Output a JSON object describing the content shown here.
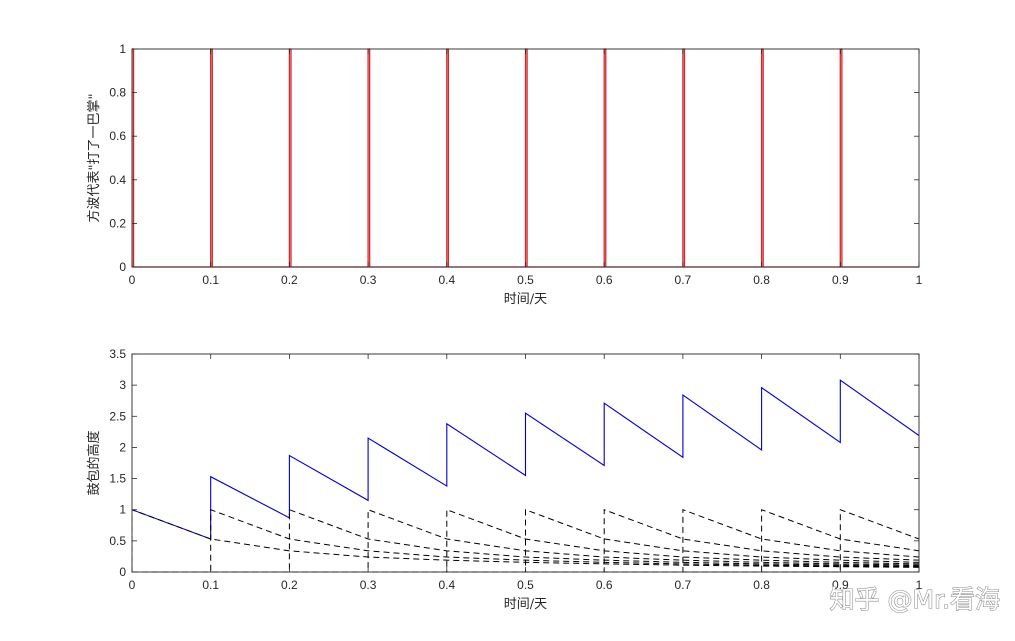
{
  "chart_data": [
    {
      "type": "line",
      "title": "",
      "xlabel": "时间/天",
      "ylabel": "方波代表\"打了一巴掌\"",
      "xlim": [
        0,
        1
      ],
      "ylim": [
        0,
        1
      ],
      "xticks": [
        "0",
        "0.1",
        "0.2",
        "0.3",
        "0.4",
        "0.5",
        "0.6",
        "0.7",
        "0.8",
        "0.9",
        "1"
      ],
      "yticks": [
        "0",
        "0.2",
        "0.4",
        "0.6",
        "0.8",
        "1"
      ],
      "grid": false,
      "series": [
        {
          "color": "#d62728",
          "style": "solid",
          "pulse_starts": [
            0,
            0.1,
            0.2,
            0.3,
            0.4,
            0.5,
            0.6,
            0.7,
            0.8,
            0.9
          ],
          "pulse_width": 0.002,
          "high": 1,
          "low": 0
        }
      ]
    },
    {
      "type": "line",
      "title": "",
      "xlabel": "时间/天",
      "ylabel": "鼓包的高度",
      "xlim": [
        0,
        1
      ],
      "ylim": [
        0,
        3.5
      ],
      "xticks": [
        "0",
        "0.1",
        "0.2",
        "0.3",
        "0.4",
        "0.5",
        "0.6",
        "0.7",
        "0.8",
        "0.9",
        "1"
      ],
      "yticks": [
        "0",
        "0.5",
        "1",
        "1.5",
        "2",
        "2.5",
        "3",
        "3.5"
      ],
      "grid": false,
      "series": [
        {
          "color": "#0000cc",
          "style": "solid",
          "kind": "sum",
          "points": [
            [
              0,
              1
            ],
            [
              0.1,
              0.53
            ],
            [
              0.1,
              1.53
            ],
            [
              0.2,
              0.87
            ],
            [
              0.2,
              1.87
            ],
            [
              0.3,
              1.15
            ],
            [
              0.3,
              2.15
            ],
            [
              0.4,
              1.38
            ],
            [
              0.4,
              2.38
            ],
            [
              0.5,
              1.55
            ],
            [
              0.5,
              2.55
            ],
            [
              0.6,
              1.71
            ],
            [
              0.6,
              2.71
            ],
            [
              0.7,
              1.84
            ],
            [
              0.7,
              2.84
            ],
            [
              0.8,
              1.96
            ],
            [
              0.8,
              2.96
            ],
            [
              0.9,
              2.08
            ],
            [
              0.9,
              3.08
            ],
            [
              1,
              2.19
            ]
          ]
        },
        {
          "color": "#000000",
          "style": "dashed",
          "kind": "components",
          "impulse_starts": [
            0,
            0.1,
            0.2,
            0.3,
            0.4,
            0.5,
            0.6,
            0.7,
            0.8,
            0.9
          ],
          "values_after_start": [
            [
              0,
              1
            ],
            [
              0.1,
              0.53
            ],
            [
              0.2,
              0.34
            ],
            [
              0.3,
              0.24
            ],
            [
              0.4,
              0.19
            ],
            [
              0.5,
              0.155
            ],
            [
              0.6,
              0.13
            ],
            [
              0.7,
              0.11
            ],
            [
              0.8,
              0.095
            ],
            [
              0.9,
              0.085
            ],
            [
              1,
              0.075
            ]
          ]
        }
      ]
    }
  ],
  "watermark": "知乎 @Mr.看海"
}
